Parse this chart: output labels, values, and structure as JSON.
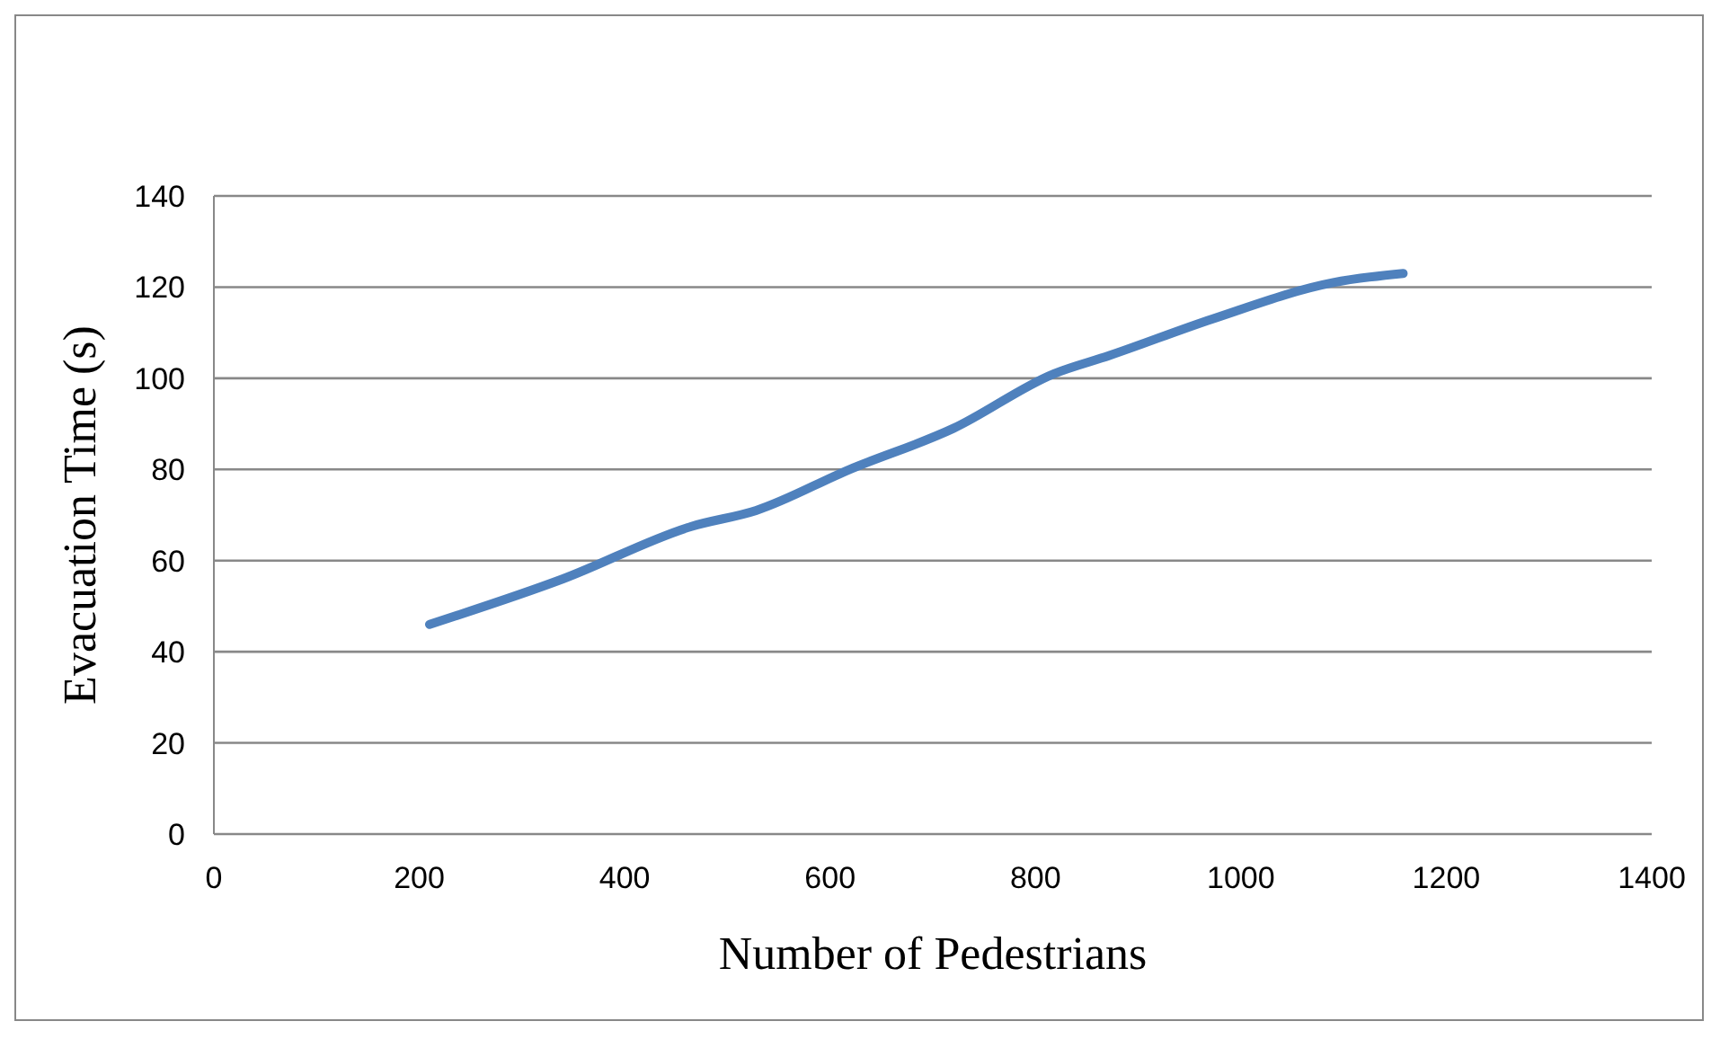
{
  "chart_data": {
    "type": "line",
    "xlabel": "Number of Pedestrians",
    "ylabel": "Evacuation Time (s)",
    "x": [
      210,
      340,
      465,
      528,
      619,
      720,
      818,
      872,
      972,
      1090,
      1158
    ],
    "series": [
      {
        "color": "#4f81bd",
        "values": [
          46,
          56,
          67.5,
          71,
          80,
          89,
          101,
          105,
          113,
          121,
          123
        ]
      }
    ],
    "xlim": [
      0,
      1400
    ],
    "xticks": [
      0,
      200,
      400,
      600,
      800,
      1000,
      1200,
      1400
    ],
    "ylim": [
      0,
      140
    ],
    "yticks": [
      0,
      20,
      40,
      60,
      80,
      100,
      120,
      140
    ],
    "grid": "y",
    "legend": false,
    "marker": "none",
    "line_style": "solid"
  }
}
